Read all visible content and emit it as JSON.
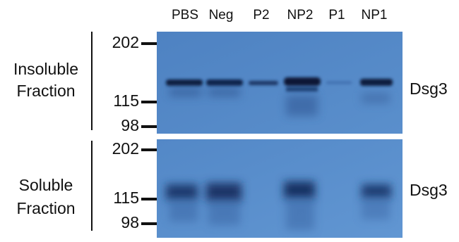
{
  "lanes": [
    "PBS",
    "Neg",
    "P2",
    "NP2",
    "P1",
    "NP1"
  ],
  "panels": [
    {
      "label_lines": [
        "Insoluble",
        "Fraction"
      ],
      "markers": [
        202,
        115,
        98
      ],
      "band_label": "Dsg3"
    },
    {
      "label_lines": [
        "Soluble",
        "Fraction"
      ],
      "markers": [
        202,
        115,
        98
      ],
      "band_label": "Dsg3"
    }
  ]
}
